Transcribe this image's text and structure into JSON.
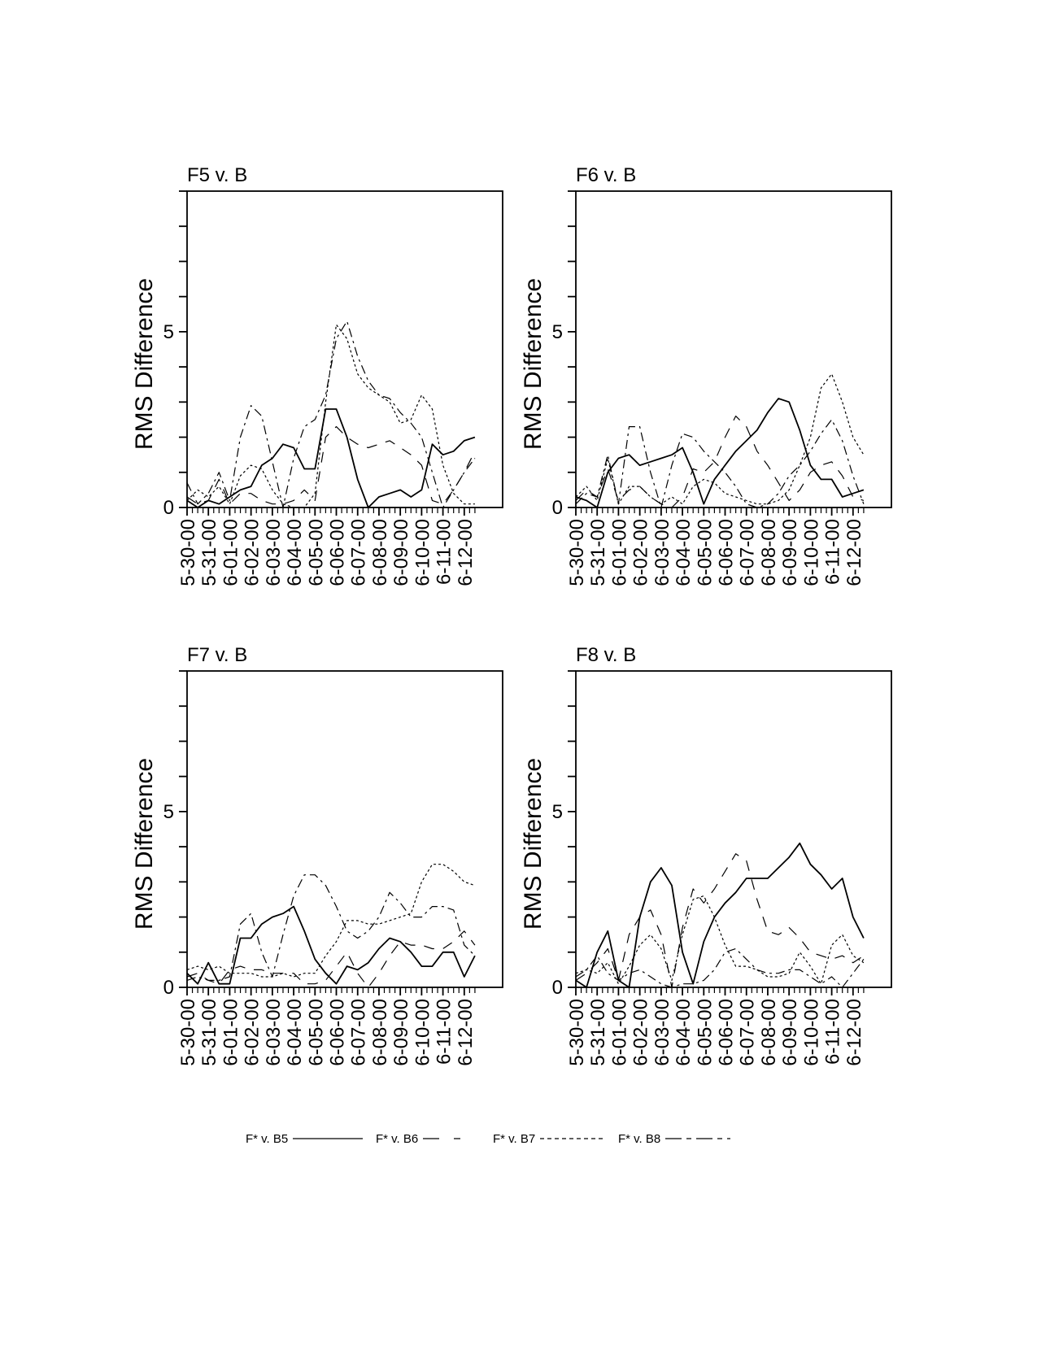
{
  "chart_data": [
    {
      "type": "line",
      "title": "F5 v. B",
      "ylabel": "RMS Difference",
      "xlabel": "",
      "ylim": [
        0,
        9
      ],
      "xlim": [
        0,
        14.8
      ],
      "ytick_labels": [
        {
          "value": 0,
          "label": "0"
        },
        {
          "value": 5,
          "label": "5"
        }
      ],
      "x_start": 0,
      "x_step": 0.5,
      "series": [
        {
          "name": "F* v. B5",
          "style": "solid",
          "values": [
            0.2,
            0,
            0.2,
            0.1,
            0.3,
            0.5,
            0.6,
            1.2,
            1.4,
            1.8,
            1.7,
            1.1,
            1.1,
            2.8,
            2.8,
            2.0,
            0.8,
            0,
            0.3,
            0.4,
            0.5,
            0.3,
            0.5,
            1.8,
            1.5,
            1.6,
            1.9,
            2.0
          ]
        },
        {
          "name": "F* v. B6",
          "style": "dashed",
          "values": [
            0.3,
            0.1,
            0.2,
            0.8,
            0.1,
            0.4,
            0.4,
            0.2,
            0.1,
            0.1,
            0.2,
            0.5,
            0.2,
            2.0,
            2.3,
            2.0,
            1.8,
            1.7,
            1.8,
            1.9,
            1.7,
            1.5,
            1.2,
            0.2,
            0.1,
            0.5,
            1.0,
            1.6
          ]
        },
        {
          "name": "F* v. B7",
          "style": "dotted",
          "values": [
            0.2,
            0.5,
            0.3,
            0.6,
            0.1,
            0.9,
            1.2,
            1.1,
            0.5,
            0.1,
            0,
            0,
            0.4,
            3.0,
            5.2,
            4.8,
            3.8,
            3.4,
            3.2,
            3.0,
            2.4,
            2.5,
            3.2,
            2.8,
            1.2,
            0.4,
            0.1,
            0.1
          ]
        },
        {
          "name": "F* v. B8",
          "style": "dashdot",
          "values": [
            0.7,
            0.1,
            0.4,
            1.0,
            0.2,
            2.0,
            2.9,
            2.6,
            1.3,
            0,
            1.4,
            2.3,
            2.5,
            3.2,
            4.8,
            5.3,
            4.3,
            3.6,
            3.2,
            3.1,
            2.7,
            2.4,
            2.0,
            1.0,
            0,
            0.5,
            1.0,
            1.4
          ]
        }
      ]
    },
    {
      "type": "line",
      "title": "F6 v. B",
      "ylabel": "RMS Difference",
      "xlabel": "",
      "ylim": [
        0,
        9
      ],
      "xlim": [
        0,
        14.8
      ],
      "ytick_labels": [
        {
          "value": 0,
          "label": "0"
        },
        {
          "value": 5,
          "label": "5"
        }
      ],
      "x_start": 0,
      "x_step": 0.5,
      "series": [
        {
          "name": "F* v. B5",
          "style": "solid",
          "values": [
            0.3,
            0.2,
            0,
            1.0,
            1.4,
            1.5,
            1.2,
            1.3,
            1.4,
            1.5,
            1.7,
            1.0,
            0.1,
            0.8,
            1.2,
            1.6,
            1.9,
            2.2,
            2.7,
            3.1,
            3.0,
            2.2,
            1.2,
            0.8,
            0.8,
            0.3,
            0.4,
            0.5
          ]
        },
        {
          "name": "F* v. B6",
          "style": "dashed",
          "values": [
            0.2,
            0.5,
            0.3,
            1.1,
            0.2,
            0.5,
            0.6,
            0.3,
            0.1,
            0,
            0.3,
            1.1,
            1.0,
            1.3,
            2.0,
            2.6,
            2.3,
            1.6,
            1.2,
            0.7,
            0.2,
            0.5,
            1.0,
            1.2,
            1.3,
            0.9,
            0.3,
            0.2
          ]
        },
        {
          "name": "F* v. B7",
          "style": "dotted",
          "values": [
            0.3,
            0.6,
            0.2,
            1.4,
            0.1,
            0.6,
            0.6,
            0.3,
            0.1,
            0.3,
            0.1,
            0.6,
            0.8,
            0.7,
            0.4,
            0.3,
            0.2,
            0.1,
            0.1,
            0.2,
            0.5,
            1.2,
            2.0,
            3.4,
            3.8,
            3.0,
            2.0,
            1.5
          ]
        },
        {
          "name": "F* v. B8",
          "style": "dashdot",
          "values": [
            0.1,
            0.4,
            0.3,
            1.5,
            0.1,
            2.3,
            2.3,
            1.0,
            0,
            1.2,
            2.1,
            2.0,
            1.6,
            1.3,
            1.0,
            0.6,
            0.1,
            0,
            0.1,
            0.4,
            0.9,
            1.2,
            1.6,
            2.1,
            2.5,
            1.9,
            0.9,
            0.1
          ]
        }
      ]
    },
    {
      "type": "line",
      "title": "F7 v. B",
      "ylabel": "RMS Difference",
      "xlabel": "",
      "ylim": [
        0,
        9
      ],
      "xlim": [
        0,
        14.8
      ],
      "ytick_labels": [
        {
          "value": 0,
          "label": "0"
        },
        {
          "value": 5,
          "label": "5"
        }
      ],
      "x_start": 0,
      "x_step": 0.5,
      "series": [
        {
          "name": "F* v. B5",
          "style": "solid",
          "values": [
            0.4,
            0.1,
            0.7,
            0.1,
            0.1,
            1.4,
            1.4,
            1.8,
            2.0,
            2.1,
            2.3,
            1.6,
            0.8,
            0.4,
            0.1,
            0.6,
            0.5,
            0.7,
            1.1,
            1.4,
            1.3,
            1.0,
            0.6,
            0.6,
            1.0,
            1.0,
            0.3,
            0.9
          ]
        },
        {
          "name": "F* v. B6",
          "style": "dashed",
          "values": [
            0.3,
            0.4,
            0.2,
            0.1,
            0.5,
            0.6,
            0.5,
            0.5,
            0.4,
            0.4,
            0.4,
            0.1,
            0.1,
            0.2,
            0.6,
            1.0,
            0.4,
            0,
            0.4,
            0.9,
            1.3,
            1.2,
            1.2,
            1.1,
            1.1,
            1.3,
            1.6,
            1.2
          ]
        },
        {
          "name": "F* v. B7",
          "style": "dotted",
          "values": [
            0.5,
            0.6,
            0.5,
            0.6,
            0.4,
            0.4,
            0.4,
            0.3,
            0.3,
            0.4,
            0.3,
            0.4,
            0.4,
            0.9,
            1.3,
            1.9,
            1.9,
            1.8,
            1.8,
            1.9,
            2.0,
            2.1,
            3.0,
            3.5,
            3.5,
            3.3,
            3.0,
            2.9
          ]
        },
        {
          "name": "F* v. B8",
          "style": "dashdot",
          "values": [
            0.2,
            0.3,
            0.2,
            0.2,
            0.3,
            1.8,
            2.1,
            1.0,
            0.3,
            1.5,
            2.6,
            3.2,
            3.2,
            2.9,
            2.3,
            1.6,
            1.4,
            1.6,
            2.0,
            2.7,
            2.4,
            2.0,
            2.0,
            2.3,
            2.3,
            2.2,
            1.2,
            0.9
          ]
        }
      ]
    },
    {
      "type": "line",
      "title": "F8 v. B",
      "ylabel": "RMS Difference",
      "xlabel": "",
      "ylim": [
        0,
        9
      ],
      "xlim": [
        0,
        14.8
      ],
      "ytick_labels": [
        {
          "value": 0,
          "label": "0"
        },
        {
          "value": 5,
          "label": "5"
        }
      ],
      "x_start": 0,
      "x_step": 0.5,
      "series": [
        {
          "name": "F* v. B5",
          "style": "solid",
          "values": [
            0.2,
            0,
            1.0,
            1.6,
            0.2,
            0,
            2.0,
            3.0,
            3.4,
            2.9,
            1.0,
            0.1,
            1.3,
            2.0,
            2.4,
            2.7,
            3.1,
            3.1,
            3.1,
            3.4,
            3.7,
            4.1,
            3.5,
            3.2,
            2.8,
            3.1,
            2.0,
            1.4
          ]
        },
        {
          "name": "F* v. B6",
          "style": "dashed",
          "values": [
            0.2,
            0.4,
            0.7,
            1.1,
            0.2,
            1.5,
            2.0,
            2.2,
            1.5,
            0,
            1.7,
            2.8,
            2.4,
            2.8,
            3.3,
            3.8,
            3.6,
            2.5,
            1.6,
            1.5,
            1.7,
            1.4,
            1.0,
            0.9,
            0.8,
            0.9,
            0.7,
            0.9
          ]
        },
        {
          "name": "F* v. B7",
          "style": "dotted",
          "values": [
            0.4,
            0.5,
            0.4,
            0.7,
            0.1,
            0.6,
            1.2,
            1.5,
            1.1,
            0.2,
            1.5,
            2.5,
            2.6,
            2.0,
            1.2,
            0.6,
            0.6,
            0.5,
            0.3,
            0.3,
            0.4,
            1.0,
            0.6,
            0.1,
            1.2,
            1.5,
            0.9,
            0.7
          ]
        },
        {
          "name": "F* v. B8",
          "style": "dashdot",
          "values": [
            0.3,
            0.5,
            0.9,
            0.4,
            0.2,
            0.4,
            0.5,
            0.3,
            0.1,
            0,
            0.1,
            0.1,
            0.2,
            0.5,
            1.0,
            1.1,
            0.8,
            0.5,
            0.4,
            0.4,
            0.5,
            0.5,
            0.3,
            0.1,
            0.3,
            0,
            0.4,
            0.8
          ]
        }
      ]
    }
  ],
  "xtick_labels": [
    "5-30-00",
    "5-31-00",
    "6-01-00",
    "6-02-00",
    "6-03-00",
    "6-04-00",
    "6-05-00",
    "6-06-00",
    "6-07-00",
    "6-08-00",
    "6-09-00",
    "6-10-00",
    "6-11-00",
    "6-12-00"
  ],
  "legend": {
    "placement": "bottom-center",
    "entries": [
      {
        "label": "F* v. B5",
        "style": "solid"
      },
      {
        "label": "F* v. B6",
        "style": "dashed"
      },
      {
        "label": "F* v. B7",
        "style": "dotted"
      },
      {
        "label": "F* v. B8",
        "style": "dashdot"
      }
    ]
  },
  "colors": {
    "line": "#000000",
    "background": "#ffffff"
  }
}
